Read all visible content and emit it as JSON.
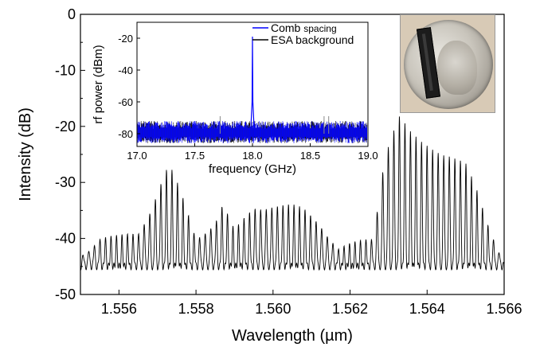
{
  "chart_data": [
    {
      "type": "line",
      "title": "",
      "xlabel": "Wavelength (µm)",
      "ylabel": "Intensity (dB)",
      "xlim": [
        1.555,
        1.566
      ],
      "ylim": [
        -50,
        0
      ],
      "xticks": [
        1.556,
        1.558,
        1.56,
        1.562,
        1.564,
        1.566
      ],
      "xtick_labels": [
        "1.556",
        "1.558",
        "1.560",
        "1.562",
        "1.564",
        "1.566"
      ],
      "yticks": [
        0,
        -10,
        -20,
        -30,
        -40,
        -50
      ],
      "ytick_labels": [
        "0",
        "-10",
        "-20",
        "-30",
        "-40",
        "-50"
      ],
      "grid": false,
      "series": [
        {
          "color": "#000000",
          "comb_spacing_um": 0.000144,
          "floor_db": -45,
          "x": [
            1.555,
            1.5555,
            1.556,
            1.5565,
            1.5568,
            1.5571,
            1.5573,
            1.5576,
            1.558,
            1.5585,
            1.5587,
            1.559,
            1.5595,
            1.56,
            1.5605,
            1.5608,
            1.5612,
            1.5617,
            1.5622,
            1.5626,
            1.5629,
            1.5631,
            1.5633,
            1.5635,
            1.5638,
            1.5642,
            1.5646,
            1.565,
            1.5653,
            1.5656,
            1.566
          ],
          "values": [
            -43,
            -40,
            -40,
            -39,
            -35,
            -30,
            -27,
            -32,
            -40,
            -37,
            -34,
            -39,
            -34.5,
            -34,
            -34.5,
            -35,
            -37,
            -42,
            -41,
            -40,
            -25,
            -21,
            -18,
            -21,
            -23,
            -24,
            -25,
            -27,
            -32,
            -38,
            -44
          ]
        }
      ]
    },
    {
      "type": "line",
      "title": "",
      "xlabel": "frequency (GHz)",
      "ylabel": "rf power (dBm)",
      "xlim": [
        17.0,
        19.0
      ],
      "ylim": [
        -88,
        -10
      ],
      "xticks": [
        17.0,
        17.5,
        18.0,
        18.5,
        19.0
      ],
      "xtick_labels": [
        "17.0",
        "17.5",
        "18.0",
        "18.5",
        "19.0"
      ],
      "yticks": [
        -20,
        -40,
        -60,
        -80
      ],
      "ytick_labels": [
        "-20",
        "-40",
        "-60",
        "-80"
      ],
      "legend": "top-right",
      "series": [
        {
          "name": "Comb spacing",
          "color": "#0000ff",
          "noise_center": -79,
          "noise_halfwidth": 7,
          "peak_x": 18.0,
          "peak_y": -19
        },
        {
          "name": "ESA background",
          "color": "#000000",
          "noise_center": -79,
          "noise_halfwidth": 7
        }
      ]
    }
  ],
  "legend": {
    "entry1_main": "Comb",
    "entry1_sub": "spacing",
    "entry2": "ESA background"
  },
  "photo": {
    "description_icon": "coin-with-chip-photo"
  }
}
